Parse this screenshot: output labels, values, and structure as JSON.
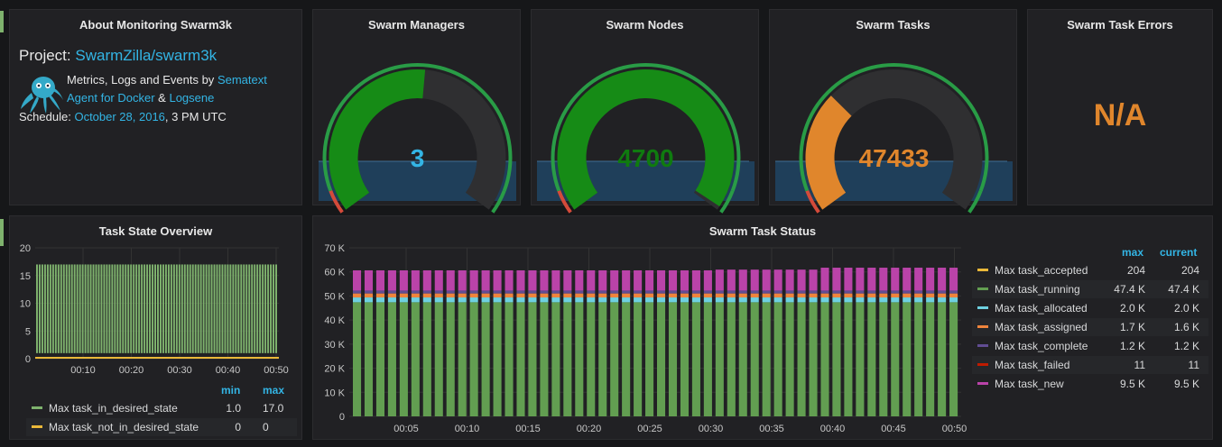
{
  "about": {
    "title": "About Monitoring Swarm3k",
    "project_label": "Project:",
    "project_link": "SwarmZilla/swarm3k",
    "line1_prefix": "Metrics, Logs and Events by",
    "line1_link": "Sematext",
    "line2_link1": "Agent for Docker",
    "line2_amp": "&",
    "line2_link2": "Logsene",
    "schedule_label": "Schedule:",
    "schedule_link": "October 28, 2016",
    "schedule_suffix": ", 3 PM UTC"
  },
  "gauges": [
    {
      "title": "Swarm Managers",
      "value_text": "3",
      "fraction": 0.52,
      "color": "#33b5e5",
      "fill": "#168b16"
    },
    {
      "title": "Swarm Nodes",
      "value_text": "4700",
      "fraction": 0.99,
      "color": "#0f7b0f",
      "fill": "#168b16"
    },
    {
      "title": "Swarm Tasks",
      "value_text": "47433",
      "fraction": 0.32,
      "color": "#e0862c",
      "fill": "#e0862c"
    }
  ],
  "errors": {
    "title": "Swarm Task Errors",
    "value": "N/A",
    "color": "#e0862c"
  },
  "task_state": {
    "title": "Task State Overview",
    "legend_headers": [
      "min",
      "max"
    ],
    "legend": [
      {
        "name": "Max task_in_desired_state",
        "min": "1.0",
        "max": "17.0",
        "color": "#7eb26d"
      },
      {
        "name": "Max task_not_in_desired_state",
        "min": "0",
        "max": "0",
        "color": "#eab839"
      }
    ],
    "chart_data": {
      "type": "bar",
      "yticks": [
        "20",
        "15",
        "10",
        "5",
        "0"
      ],
      "xticks": [
        "00:10",
        "00:20",
        "00:30",
        "00:40",
        "00:50"
      ],
      "ylim": [
        0,
        20
      ],
      "series": [
        {
          "name": "Max task_in_desired_state",
          "high": 17,
          "low": 1,
          "color": "#7eb26d"
        },
        {
          "name": "Max task_not_in_desired_state",
          "value": 0,
          "color": "#eab839"
        }
      ]
    }
  },
  "task_status": {
    "title": "Swarm Task Status",
    "legend_headers": [
      "max",
      "current"
    ],
    "legend": [
      {
        "name": "Max task_accepted",
        "max": "204",
        "current": "204",
        "color": "#eab839"
      },
      {
        "name": "Max task_running",
        "max": "47.4 K",
        "current": "47.4 K",
        "color": "#629e51"
      },
      {
        "name": "Max task_allocated",
        "max": "2.0 K",
        "current": "2.0 K",
        "color": "#6ed0e0"
      },
      {
        "name": "Max task_assigned",
        "max": "1.7 K",
        "current": "1.6 K",
        "color": "#ef843c"
      },
      {
        "name": "Max task_complete",
        "max": "1.2 K",
        "current": "1.2 K",
        "color": "#614d93"
      },
      {
        "name": "Max task_failed",
        "max": "11",
        "current": "11",
        "color": "#bf1b00"
      },
      {
        "name": "Max task_new",
        "max": "9.5 K",
        "current": "9.5 K",
        "color": "#ba43a9"
      }
    ],
    "chart_data": {
      "type": "bar",
      "stacked": true,
      "yticks": [
        "70 K",
        "60 K",
        "50 K",
        "40 K",
        "30 K",
        "20 K",
        "10 K",
        "0"
      ],
      "xticks": [
        "00:05",
        "00:10",
        "00:15",
        "00:20",
        "00:25",
        "00:30",
        "00:35",
        "00:40",
        "00:45",
        "00:50"
      ],
      "ylim": [
        0,
        70000
      ],
      "bar_count": 52,
      "series_values": {
        "running": 47400,
        "allocated": 2000,
        "assigned": 1650,
        "complete": 1200,
        "new_early": 8400,
        "new_late": 9500
      }
    }
  }
}
